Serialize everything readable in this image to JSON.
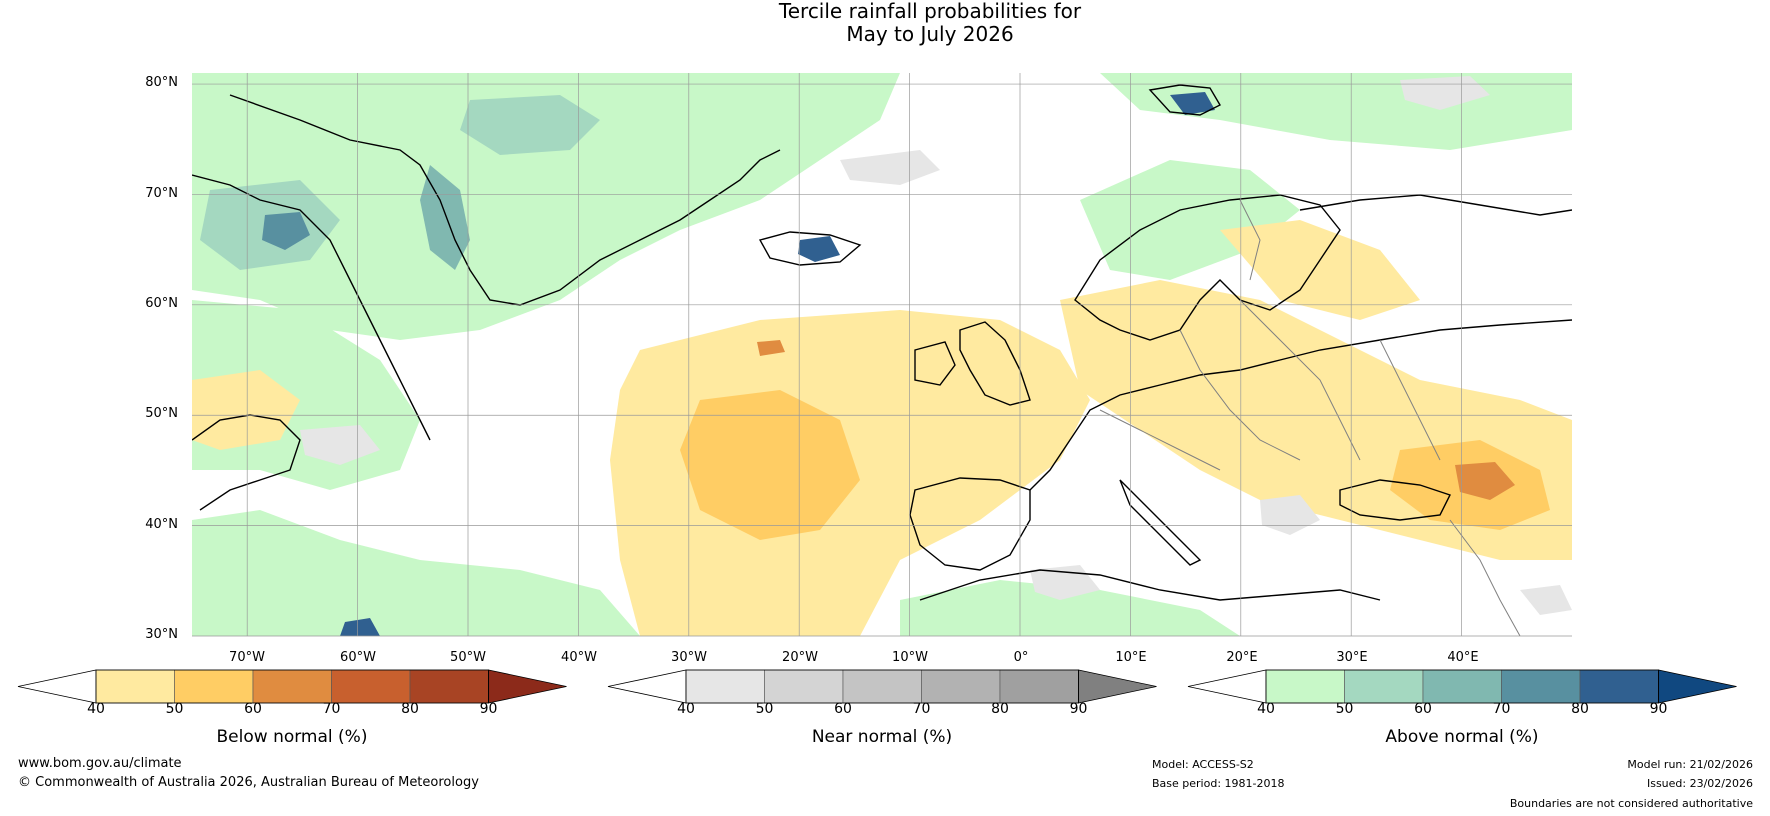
{
  "title": {
    "line1": "Tercile rainfall probabilities for",
    "line2": "May to July 2026"
  },
  "map": {
    "lat_labels": [
      "80°N",
      "70°N",
      "60°N",
      "50°N",
      "40°N",
      "30°N"
    ],
    "lon_labels": [
      "70°W",
      "60°W",
      "50°W",
      "40°W",
      "30°W",
      "20°W",
      "10°W",
      "0°",
      "10°E",
      "20°E",
      "30°E",
      "40°E"
    ],
    "extent": {
      "lon_min": -75,
      "lon_max": 50,
      "lat_min": 30,
      "lat_max": 81
    }
  },
  "colorbars": [
    {
      "title": "Below normal (%)",
      "ticks": [
        "40",
        "50",
        "60",
        "70",
        "80",
        "90"
      ],
      "colors": [
        "#ffffff",
        "#ffeaa0",
        "#ffcd64",
        "#e08c40",
        "#c8602e",
        "#a84424",
        "#8c2a1a"
      ]
    },
    {
      "title": "Near normal (%)",
      "ticks": [
        "40",
        "50",
        "60",
        "70",
        "80",
        "90"
      ],
      "colors": [
        "#ffffff",
        "#e6e6e6",
        "#d4d4d4",
        "#c4c4c4",
        "#b2b2b2",
        "#a0a0a0",
        "#808080"
      ]
    },
    {
      "title": "Above normal (%)",
      "ticks": [
        "40",
        "50",
        "60",
        "70",
        "80",
        "90"
      ],
      "colors": [
        "#ffffff",
        "#c8f8c8",
        "#a4d8c0",
        "#80b8b0",
        "#5890a0",
        "#306090",
        "#104880"
      ]
    }
  ],
  "footer": {
    "website": "www.bom.gov.au/climate",
    "copyright": "© Commonwealth of Australia 2026, Australian Bureau of Meteorology",
    "model": "Model: ACCESS-S2",
    "base_period": "Base period: 1981-2018",
    "model_run": "Model run: 21/02/2026",
    "issued": "Issued: 23/02/2026",
    "disclaimer": "Boundaries are not considered authoritative"
  }
}
